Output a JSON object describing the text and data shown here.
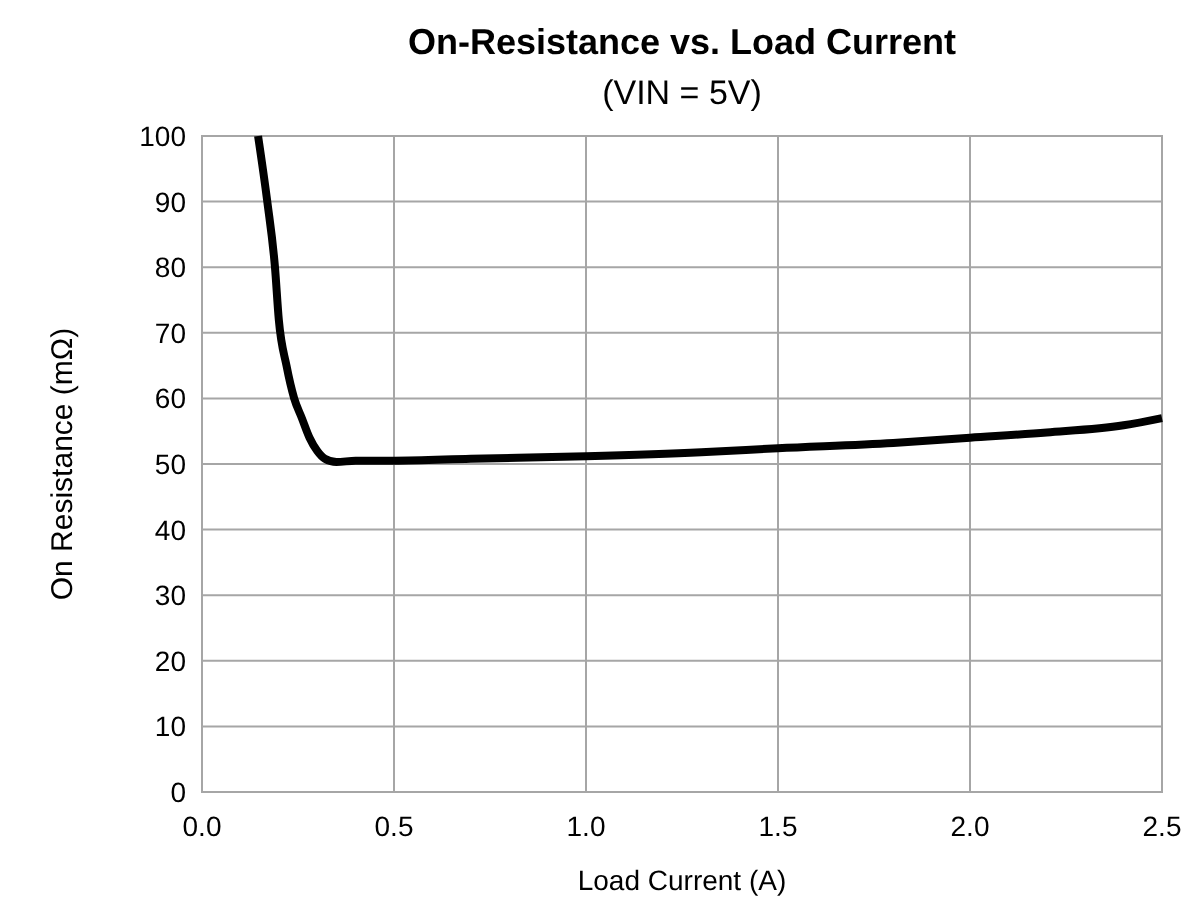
{
  "chart_data": {
    "type": "line",
    "title": "On-Resistance vs. Load Current",
    "subtitle": "(VIN = 5V)",
    "xlabel": "Load Current (A)",
    "ylabel": "On Resistance (mΩ)",
    "series": [
      {
        "color": "#000000",
        "x": [
          0.146,
          0.17,
          0.19,
          0.2,
          0.22,
          0.24,
          0.26,
          0.28,
          0.3,
          0.32,
          0.35,
          0.4,
          0.5,
          0.7,
          1.0,
          1.3,
          1.5,
          1.8,
          2.0,
          2.2,
          2.4,
          2.5
        ],
        "values": [
          100,
          90,
          80,
          72,
          65,
          60,
          57,
          54,
          52,
          50.8,
          50.3,
          50.5,
          50.5,
          50.8,
          51.2,
          51.8,
          52.4,
          53.2,
          54,
          54.8,
          55.9,
          57
        ]
      }
    ],
    "xlim": [
      0,
      2.5
    ],
    "ylim": [
      0,
      100
    ],
    "xticks": [
      {
        "value": 0,
        "label": "0.0"
      },
      0.5,
      {
        "value": 1,
        "label": "1.0"
      },
      1.5,
      {
        "value": 2,
        "label": "2.0"
      },
      2.5
    ],
    "yticks": [
      0,
      10,
      20,
      30,
      40,
      50,
      60,
      70,
      80,
      90,
      100
    ],
    "grid": true,
    "marker": "none",
    "line_style": "solid"
  }
}
